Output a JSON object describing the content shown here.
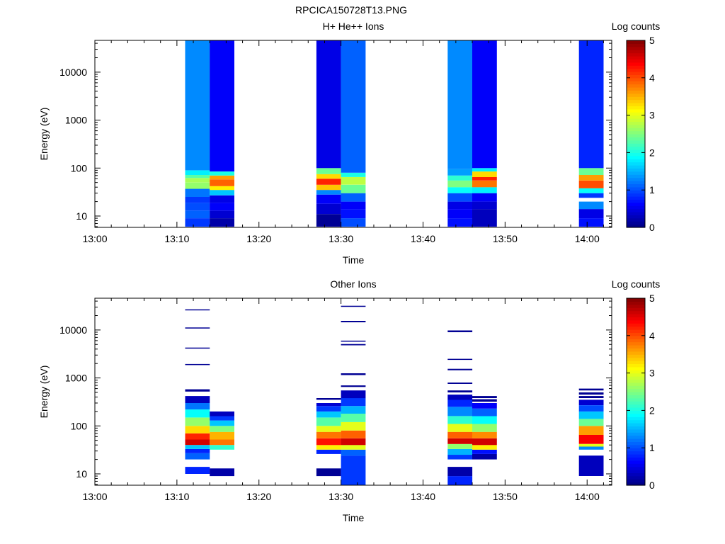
{
  "figure": {
    "title": "RPCICA150728T13.PNG"
  },
  "chart_data": [
    {
      "type": "heatmap",
      "title": "H+ He++ Ions",
      "xlabel": "Time",
      "ylabel": "Energy (eV)",
      "ylog": true,
      "ylim": [
        5.8,
        46000
      ],
      "xlim": [
        "13:00",
        "14:03"
      ],
      "xticks": [
        "13:00",
        "13:10",
        "13:20",
        "13:30",
        "13:40",
        "13:50",
        "14:00"
      ],
      "yticks": [
        "10",
        "100",
        "1000",
        "10000"
      ],
      "colorbar": {
        "label": "Log counts",
        "range": [
          0,
          5
        ],
        "ticks": [
          "0",
          "1",
          "2",
          "3",
          "4",
          "5"
        ],
        "colormap": "jet"
      },
      "columns": [
        {
          "t0": "13:11",
          "t1": "13:14",
          "bins": [
            [
              6,
              9,
              0.9
            ],
            [
              9,
              13,
              1.1
            ],
            [
              13,
              19,
              1.0
            ],
            [
              19,
              25,
              0.9
            ],
            [
              25,
              37,
              1.2
            ],
            [
              37,
              50,
              2.6
            ],
            [
              50,
              62,
              2.7
            ],
            [
              62,
              72,
              2.3
            ],
            [
              72,
              90,
              1.8
            ],
            [
              90,
              46000,
              1.3
            ]
          ]
        },
        {
          "t0": "13:14",
          "t1": "13:17",
          "bins": [
            [
              6,
              9,
              0.2
            ],
            [
              9,
              13,
              0.4
            ],
            [
              13,
              19,
              0.6
            ],
            [
              19,
              27,
              0.5
            ],
            [
              27,
              35,
              1.6
            ],
            [
              35,
              42,
              3.2
            ],
            [
              42,
              58,
              3.9
            ],
            [
              58,
              70,
              3.6
            ],
            [
              70,
              85,
              2.0
            ],
            [
              85,
              46000,
              0.6
            ]
          ]
        },
        {
          "t0": "13:27",
          "t1": "13:30",
          "bins": [
            [
              6,
              11,
              0.1
            ],
            [
              11,
              18,
              0.4
            ],
            [
              18,
              28,
              0.6
            ],
            [
              28,
              35,
              1.3
            ],
            [
              35,
              45,
              3.4
            ],
            [
              45,
              60,
              4.2
            ],
            [
              60,
              75,
              3.3
            ],
            [
              75,
              100,
              2.4
            ],
            [
              100,
              46000,
              0.5
            ]
          ]
        },
        {
          "t0": "13:30",
          "t1": "13:33",
          "bins": [
            [
              6,
              9,
              1.0
            ],
            [
              9,
              14,
              0.7
            ],
            [
              14,
              20,
              0.6
            ],
            [
              20,
              30,
              1.1
            ],
            [
              30,
              45,
              2.4
            ],
            [
              45,
              65,
              2.8
            ],
            [
              65,
              80,
              2.0
            ],
            [
              80,
              46000,
              1.1
            ]
          ]
        },
        {
          "t0": "13:43",
          "t1": "13:46",
          "bins": [
            [
              6,
              9,
              0.7
            ],
            [
              9,
              14,
              0.6
            ],
            [
              14,
              20,
              0.5
            ],
            [
              20,
              30,
              1.0
            ],
            [
              30,
              40,
              1.9
            ],
            [
              40,
              55,
              2.5
            ],
            [
              55,
              70,
              2.1
            ],
            [
              70,
              95,
              1.4
            ],
            [
              95,
              46000,
              1.3
            ]
          ]
        },
        {
          "t0": "13:46",
          "t1": "13:49",
          "bins": [
            [
              6,
              14,
              0.3
            ],
            [
              14,
              20,
              0.4
            ],
            [
              20,
              30,
              0.6
            ],
            [
              30,
              40,
              1.8
            ],
            [
              40,
              55,
              3.8
            ],
            [
              55,
              65,
              4.2
            ],
            [
              65,
              85,
              3.3
            ],
            [
              85,
              100,
              1.8
            ],
            [
              100,
              46000,
              0.6
            ]
          ]
        },
        {
          "t0": "13:59",
          "t1": "14:02",
          "bins": [
            [
              6,
              9,
              0.7
            ],
            [
              9,
              14,
              0.5
            ],
            [
              14,
              20,
              1.3
            ],
            [
              24,
              30,
              0.9
            ],
            [
              30,
              38,
              1.9
            ],
            [
              38,
              55,
              4.0
            ],
            [
              55,
              72,
              3.6
            ],
            [
              72,
              100,
              2.4
            ],
            [
              100,
              46000,
              0.8
            ]
          ]
        }
      ]
    },
    {
      "type": "heatmap",
      "title": "Other Ions",
      "xlabel": "Time",
      "ylabel": "Energy (eV)",
      "ylog": true,
      "ylim": [
        5.8,
        46000
      ],
      "xlim": [
        "13:00",
        "14:03"
      ],
      "xticks": [
        "13:00",
        "13:10",
        "13:20",
        "13:30",
        "13:40",
        "13:50",
        "14:00"
      ],
      "yticks": [
        "10",
        "100",
        "1000",
        "10000"
      ],
      "colorbar": {
        "label": "Log counts",
        "range": [
          0,
          5
        ],
        "ticks": [
          "0",
          "1",
          "2",
          "3",
          "4",
          "5"
        ],
        "colormap": "jet"
      },
      "columns": [
        {
          "t0": "13:11",
          "t1": "13:14",
          "bins": [
            [
              10,
              14,
              0.8
            ],
            [
              20,
              27,
              1.1
            ],
            [
              27,
              33,
              0.8
            ],
            [
              33,
              40,
              1.6
            ],
            [
              40,
              52,
              4.6
            ],
            [
              52,
              70,
              4.2
            ],
            [
              70,
              100,
              3.3
            ],
            [
              100,
              150,
              2.6
            ],
            [
              150,
              220,
              1.9
            ],
            [
              220,
              300,
              1.2
            ],
            [
              300,
              420,
              0.3
            ],
            [
              520,
              580,
              0.1
            ],
            [
              1850,
              1950,
              0.1
            ],
            [
              4100,
              4300,
              0.1
            ],
            [
              10800,
              11300,
              0.1
            ],
            [
              26000,
              27000,
              0.1
            ]
          ]
        },
        {
          "t0": "13:14",
          "t1": "13:17",
          "bins": [
            [
              9,
              13,
              0.2
            ],
            [
              32,
              40,
              2.1
            ],
            [
              40,
              52,
              3.8
            ],
            [
              52,
              75,
              3.5
            ],
            [
              75,
              100,
              2.5
            ],
            [
              100,
              130,
              1.6
            ],
            [
              130,
              160,
              0.9
            ],
            [
              160,
              200,
              0.3
            ]
          ]
        },
        {
          "t0": "13:27",
          "t1": "13:30",
          "bins": [
            [
              9,
              13,
              0.1
            ],
            [
              26,
              32,
              0.8
            ],
            [
              32,
              40,
              3.2
            ],
            [
              40,
              55,
              4.3
            ],
            [
              55,
              75,
              3.8
            ],
            [
              75,
              100,
              3.0
            ],
            [
              100,
              150,
              2.3
            ],
            [
              150,
              200,
              1.6
            ],
            [
              200,
              260,
              0.9
            ],
            [
              260,
              300,
              0.4
            ],
            [
              350,
              380,
              0.1
            ]
          ]
        },
        {
          "t0": "13:30",
          "t1": "13:33",
          "bins": [
            [
              5.8,
              24,
              0.9
            ],
            [
              24,
              32,
              1.1
            ],
            [
              32,
              40,
              3.0
            ],
            [
              40,
              55,
              4.6
            ],
            [
              55,
              80,
              3.9
            ],
            [
              80,
              120,
              3.0
            ],
            [
              120,
              180,
              2.3
            ],
            [
              180,
              260,
              1.5
            ],
            [
              260,
              380,
              0.9
            ],
            [
              380,
              550,
              0.3
            ],
            [
              650,
              700,
              0.1
            ],
            [
              1150,
              1250,
              0.1
            ],
            [
              4800,
              5100,
              0.1
            ],
            [
              5700,
              6000,
              0.1
            ],
            [
              14500,
              15500,
              0.1
            ],
            [
              31000,
              32000,
              0.1
            ]
          ]
        },
        {
          "t0": "13:43",
          "t1": "13:46",
          "bins": [
            [
              5.8,
              9,
              0.8
            ],
            [
              9,
              14,
              0.2
            ],
            [
              20,
              25,
              0.9
            ],
            [
              25,
              33,
              1.5
            ],
            [
              33,
              42,
              2.6
            ],
            [
              42,
              55,
              4.6
            ],
            [
              55,
              75,
              3.9
            ],
            [
              75,
              110,
              3.0
            ],
            [
              110,
              160,
              2.1
            ],
            [
              160,
              250,
              1.3
            ],
            [
              250,
              350,
              0.8
            ],
            [
              350,
              450,
              0.3
            ],
            [
              500,
              550,
              0.1
            ],
            [
              750,
              800,
              0.1
            ],
            [
              1450,
              1550,
              0.1
            ],
            [
              2400,
              2500,
              0.1
            ],
            [
              9000,
              9800,
              0.1
            ]
          ]
        },
        {
          "t0": "13:46",
          "t1": "13:49",
          "bins": [
            [
              20,
              26,
              0.2
            ],
            [
              26,
              32,
              0.7
            ],
            [
              32,
              40,
              3.2
            ],
            [
              40,
              55,
              4.6
            ],
            [
              55,
              75,
              3.7
            ],
            [
              75,
              110,
              2.6
            ],
            [
              110,
              160,
              1.9
            ],
            [
              160,
              230,
              1.1
            ],
            [
              230,
              300,
              0.6
            ],
            [
              320,
              360,
              0.1
            ],
            [
              380,
              420,
              0.1
            ]
          ]
        },
        {
          "t0": "13:59",
          "t1": "14:02",
          "bins": [
            [
              9,
              24,
              0.3
            ],
            [
              32,
              37,
              1.3
            ],
            [
              37,
              42,
              3.0
            ],
            [
              42,
              65,
              4.4
            ],
            [
              65,
              100,
              3.6
            ],
            [
              100,
              140,
              2.4
            ],
            [
              140,
              200,
              1.6
            ],
            [
              200,
              270,
              1.0
            ],
            [
              270,
              350,
              0.4
            ],
            [
              380,
              420,
              0.1
            ],
            [
              450,
              500,
              0.1
            ],
            [
              550,
              600,
              0.1
            ]
          ]
        }
      ]
    }
  ]
}
